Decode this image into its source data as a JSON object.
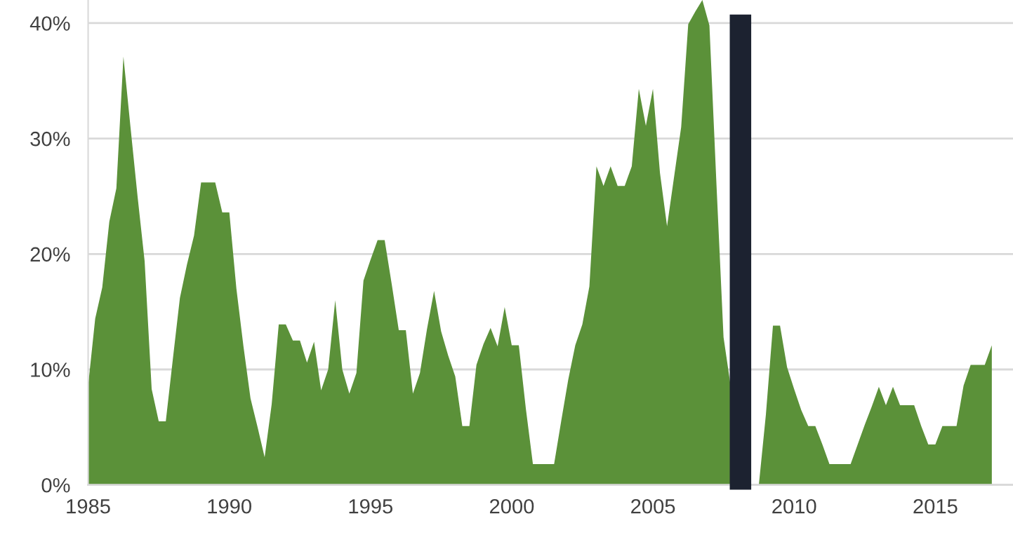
{
  "chart_data": {
    "type": "area",
    "x": [
      1985,
      1985.25,
      1985.5,
      1985.75,
      1986,
      1986.25,
      1986.5,
      1986.75,
      1987,
      1987.25,
      1987.5,
      1987.75,
      1988,
      1988.25,
      1988.5,
      1988.75,
      1989,
      1989.25,
      1989.5,
      1989.75,
      1990,
      1990.25,
      1990.5,
      1990.75,
      1991,
      1991.25,
      1991.5,
      1991.75,
      1992,
      1992.25,
      1992.5,
      1992.75,
      1993,
      1993.25,
      1993.5,
      1993.75,
      1994,
      1994.25,
      1994.5,
      1994.75,
      1995,
      1995.25,
      1995.5,
      1995.75,
      1996,
      1996.25,
      1996.5,
      1996.75,
      1997,
      1997.25,
      1997.5,
      1997.75,
      1998,
      1998.25,
      1998.5,
      1998.75,
      1999,
      1999.25,
      1999.5,
      1999.75,
      2000,
      2000.25,
      2000.5,
      2000.75,
      2001,
      2001.25,
      2001.5,
      2001.75,
      2002,
      2002.25,
      2002.5,
      2002.75,
      2003,
      2003.25,
      2003.5,
      2003.75,
      2004,
      2004.25,
      2004.5,
      2004.75,
      2005,
      2005.25,
      2005.5,
      2005.75,
      2006,
      2006.25,
      2006.5,
      2006.75,
      2007,
      2007.25,
      2007.5,
      2007.75,
      2008,
      2008.25,
      2008.5,
      2008.75,
      2009,
      2009.25,
      2009.5,
      2009.75,
      2010,
      2010.25,
      2010.5,
      2010.75,
      2011,
      2011.25,
      2011.5,
      2011.75,
      2012,
      2012.25,
      2012.5,
      2012.75,
      2013,
      2013.25,
      2013.5,
      2013.75,
      2014,
      2014.25,
      2014.5,
      2014.75,
      2015,
      2015.25,
      2015.5,
      2015.75,
      2016,
      2016.25,
      2016.5,
      2016.75,
      2017
    ],
    "values": [
      8.6,
      14.4,
      17.1,
      22.8,
      25.7,
      37.1,
      31,
      25,
      19.4,
      8.3,
      5.5,
      5.5,
      10.9,
      16.2,
      19.1,
      21.6,
      26.2,
      26.2,
      26.2,
      23.6,
      23.6,
      17,
      12,
      7.5,
      5,
      2.4,
      7,
      13.9,
      13.9,
      12.5,
      12.5,
      10.6,
      12.4,
      8.2,
      10,
      16,
      10,
      7.9,
      9.7,
      17.7,
      19.5,
      21.2,
      21.2,
      17.4,
      13.4,
      13.4,
      7.9,
      9.7,
      13.5,
      16.8,
      13.3,
      11.2,
      9.4,
      5.1,
      5.1,
      10.4,
      12.2,
      13.6,
      12,
      15.4,
      12.1,
      12.1,
      6.6,
      1.8,
      1.8,
      1.8,
      1.8,
      5.5,
      9.1,
      12.1,
      13.9,
      17.2,
      27.6,
      25.9,
      27.6,
      25.9,
      25.9,
      27.6,
      34.3,
      31.1,
      34.3,
      27,
      22.4,
      26.7,
      31,
      39.9,
      41,
      42,
      39.8,
      26,
      12.8,
      8.6,
      null,
      null,
      null,
      0,
      6.1,
      13.8,
      13.8,
      10.2,
      8.3,
      6.5,
      5.1,
      5.1,
      3.5,
      1.8,
      1.8,
      1.8,
      1.8,
      3.5,
      5.2,
      6.8,
      8.5,
      6.9,
      8.5,
      6.9,
      6.9,
      6.9,
      5.1,
      3.5,
      3.5,
      5.1,
      5.1,
      5.1,
      8.6,
      10.4,
      10.4,
      10.4,
      12.1
    ],
    "color": "#5b9139",
    "xlim": [
      1985,
      2017.75
    ],
    "xticks": [
      1985,
      1990,
      1995,
      2000,
      2005,
      2010,
      2015
    ],
    "ylim": [
      0,
      42
    ],
    "yticks": [
      {
        "value": 0,
        "label": "0%"
      },
      {
        "value": 10,
        "label": "10%"
      },
      {
        "value": 20,
        "label": "20%"
      },
      {
        "value": 30,
        "label": "30%"
      },
      {
        "value": 40,
        "label": "40%"
      }
    ],
    "grid": "y",
    "ref_lines": [
      {
        "axis": "x",
        "value": 2008.1,
        "color": "#1c2230"
      }
    ]
  }
}
